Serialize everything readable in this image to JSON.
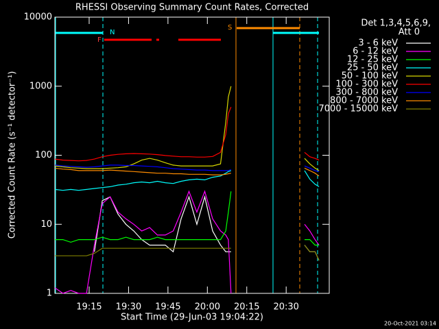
{
  "chart_data": {
    "type": "line",
    "title": "RHESSI Observing Summary Count Rates, Corrected",
    "x_label": "Start Time (29-Jun-03 19:04:22)",
    "y_label": "Corrected Count Rate (s⁻¹ detector⁻¹)",
    "legend_title": [
      "Det 1,3,4,5,6,9,",
      "Att 0"
    ],
    "footer": "20-Oct-2021 03:14",
    "flag_labels": [
      "N",
      "F",
      "S"
    ],
    "log_y": true,
    "legend": "right",
    "xlim": [
      1.95,
      106.4
    ],
    "ylim": [
      1,
      10000
    ],
    "xticks": [
      {
        "value": 15,
        "label": "19:15"
      },
      {
        "value": 30,
        "label": "19:30"
      },
      {
        "value": 45,
        "label": "19:45"
      },
      {
        "value": 60,
        "label": "20:00"
      },
      {
        "value": 75,
        "label": "20:15"
      },
      {
        "value": 90,
        "label": "20:30"
      }
    ],
    "yticks": [
      1,
      10,
      100,
      1000,
      10000
    ],
    "x": [
      2,
      5,
      8,
      11,
      14,
      17,
      20,
      23,
      26,
      29,
      32,
      35,
      38,
      41,
      44,
      47,
      50,
      53,
      56,
      59,
      62,
      65,
      67,
      68,
      69,
      83,
      97,
      99,
      101,
      102.5
    ],
    "series": [
      {
        "name": "3 - 6 keV",
        "color": "#ffffff",
        "values": [
          null,
          null,
          null,
          null,
          null,
          4,
          22,
          25,
          14,
          10,
          8,
          6,
          5,
          5,
          5,
          4,
          12,
          25,
          10,
          25,
          8,
          5,
          4,
          4,
          4,
          null,
          5,
          4,
          4,
          3
        ]
      },
      {
        "name": "6 - 12 keV",
        "color": "#ff00ff",
        "values": [
          1.2,
          1,
          1.1,
          1,
          1,
          5,
          20,
          25,
          15,
          12,
          10,
          8,
          9,
          7,
          7,
          8,
          15,
          30,
          15,
          30,
          12,
          8,
          7,
          6,
          1,
          null,
          10,
          8,
          6,
          5
        ]
      },
      {
        "name": "12 - 25 keV",
        "color": "#00ff00",
        "values": [
          6,
          6,
          5.5,
          6,
          6,
          6,
          6.5,
          6,
          6,
          6.5,
          6,
          6,
          6,
          6.5,
          6,
          6,
          6,
          6,
          6,
          6,
          6,
          6,
          8,
          15,
          30,
          null,
          6,
          6,
          5,
          5
        ]
      },
      {
        "name": "25 - 50 keV",
        "color": "#00ffff",
        "values": [
          32,
          31,
          32,
          31,
          32,
          33,
          34,
          35,
          37,
          38,
          40,
          41,
          40,
          42,
          40,
          39,
          42,
          44,
          45,
          44,
          48,
          50,
          55,
          58,
          60,
          null,
          60,
          45,
          38,
          35
        ]
      },
      {
        "name": "50 - 100 keV",
        "color": "#d8d800",
        "values": [
          70,
          68,
          66,
          65,
          64,
          64,
          64,
          65,
          66,
          68,
          75,
          85,
          90,
          85,
          78,
          72,
          70,
          70,
          70,
          70,
          70,
          75,
          300,
          700,
          1000,
          null,
          90,
          75,
          65,
          60
        ]
      },
      {
        "name": "100 - 300 keV",
        "color": "#ff0000",
        "values": [
          88,
          85,
          84,
          83,
          84,
          88,
          95,
          100,
          103,
          105,
          106,
          105,
          104,
          102,
          99,
          97,
          95,
          95,
          94,
          94,
          96,
          110,
          200,
          400,
          500,
          null,
          110,
          95,
          90,
          85
        ]
      },
      {
        "name": "300 - 800 keV",
        "color": "#0000ff",
        "values": [
          72,
          70,
          69,
          68,
          67,
          68,
          70,
          72,
          72,
          71,
          71,
          70,
          69,
          68,
          66,
          64,
          63,
          62,
          61,
          61,
          60,
          60,
          60,
          60,
          62,
          null,
          70,
          65,
          60,
          58
        ]
      },
      {
        "name": "800 - 7000 keV",
        "color": "#ff8c00",
        "values": [
          65,
          63,
          62,
          60,
          60,
          60,
          60,
          61,
          60,
          59,
          58,
          57,
          56,
          55,
          55,
          54,
          54,
          53,
          53,
          53,
          52,
          52,
          53,
          54,
          55,
          null,
          65,
          60,
          55,
          50
        ]
      },
      {
        "name": "7000 - 15000 keV",
        "color": "#808000",
        "values": [
          3.5,
          3.5,
          3.5,
          3.5,
          3.5,
          3.8,
          4.5,
          4.5,
          4.5,
          4.5,
          4.5,
          4.5,
          4.5,
          4.5,
          4.5,
          4.5,
          4.5,
          4.5,
          4.5,
          4.5,
          4.5,
          4.5,
          4.5,
          4.5,
          4.5,
          null,
          5,
          4,
          4,
          3
        ]
      }
    ]
  }
}
